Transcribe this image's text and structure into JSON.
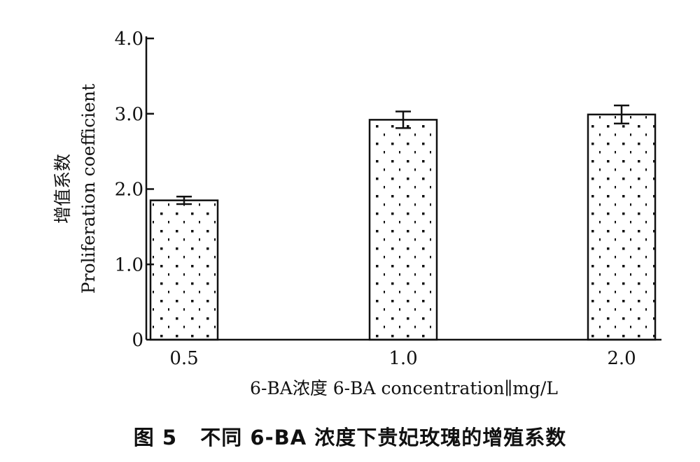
{
  "chart_data": {
    "type": "bar",
    "categories": [
      "0.5",
      "1.0",
      "2.0"
    ],
    "values": [
      1.85,
      2.92,
      2.99
    ],
    "error": [
      0.05,
      0.11,
      0.12
    ],
    "ylim": [
      0,
      4.0
    ],
    "yticks": [
      "0",
      "1.0",
      "2.0",
      "3.0",
      "4.0"
    ],
    "ylabel_cn": "增值系数",
    "ylabel_en": "Proliferation coefficient",
    "xlabel": "6-BA浓度 6-BA concentration∥mg/L",
    "bar_fill": "dotted",
    "grid": false
  },
  "caption": "图 5   不同 6-BA 浓度下贵妃玫瑰的增殖系数"
}
